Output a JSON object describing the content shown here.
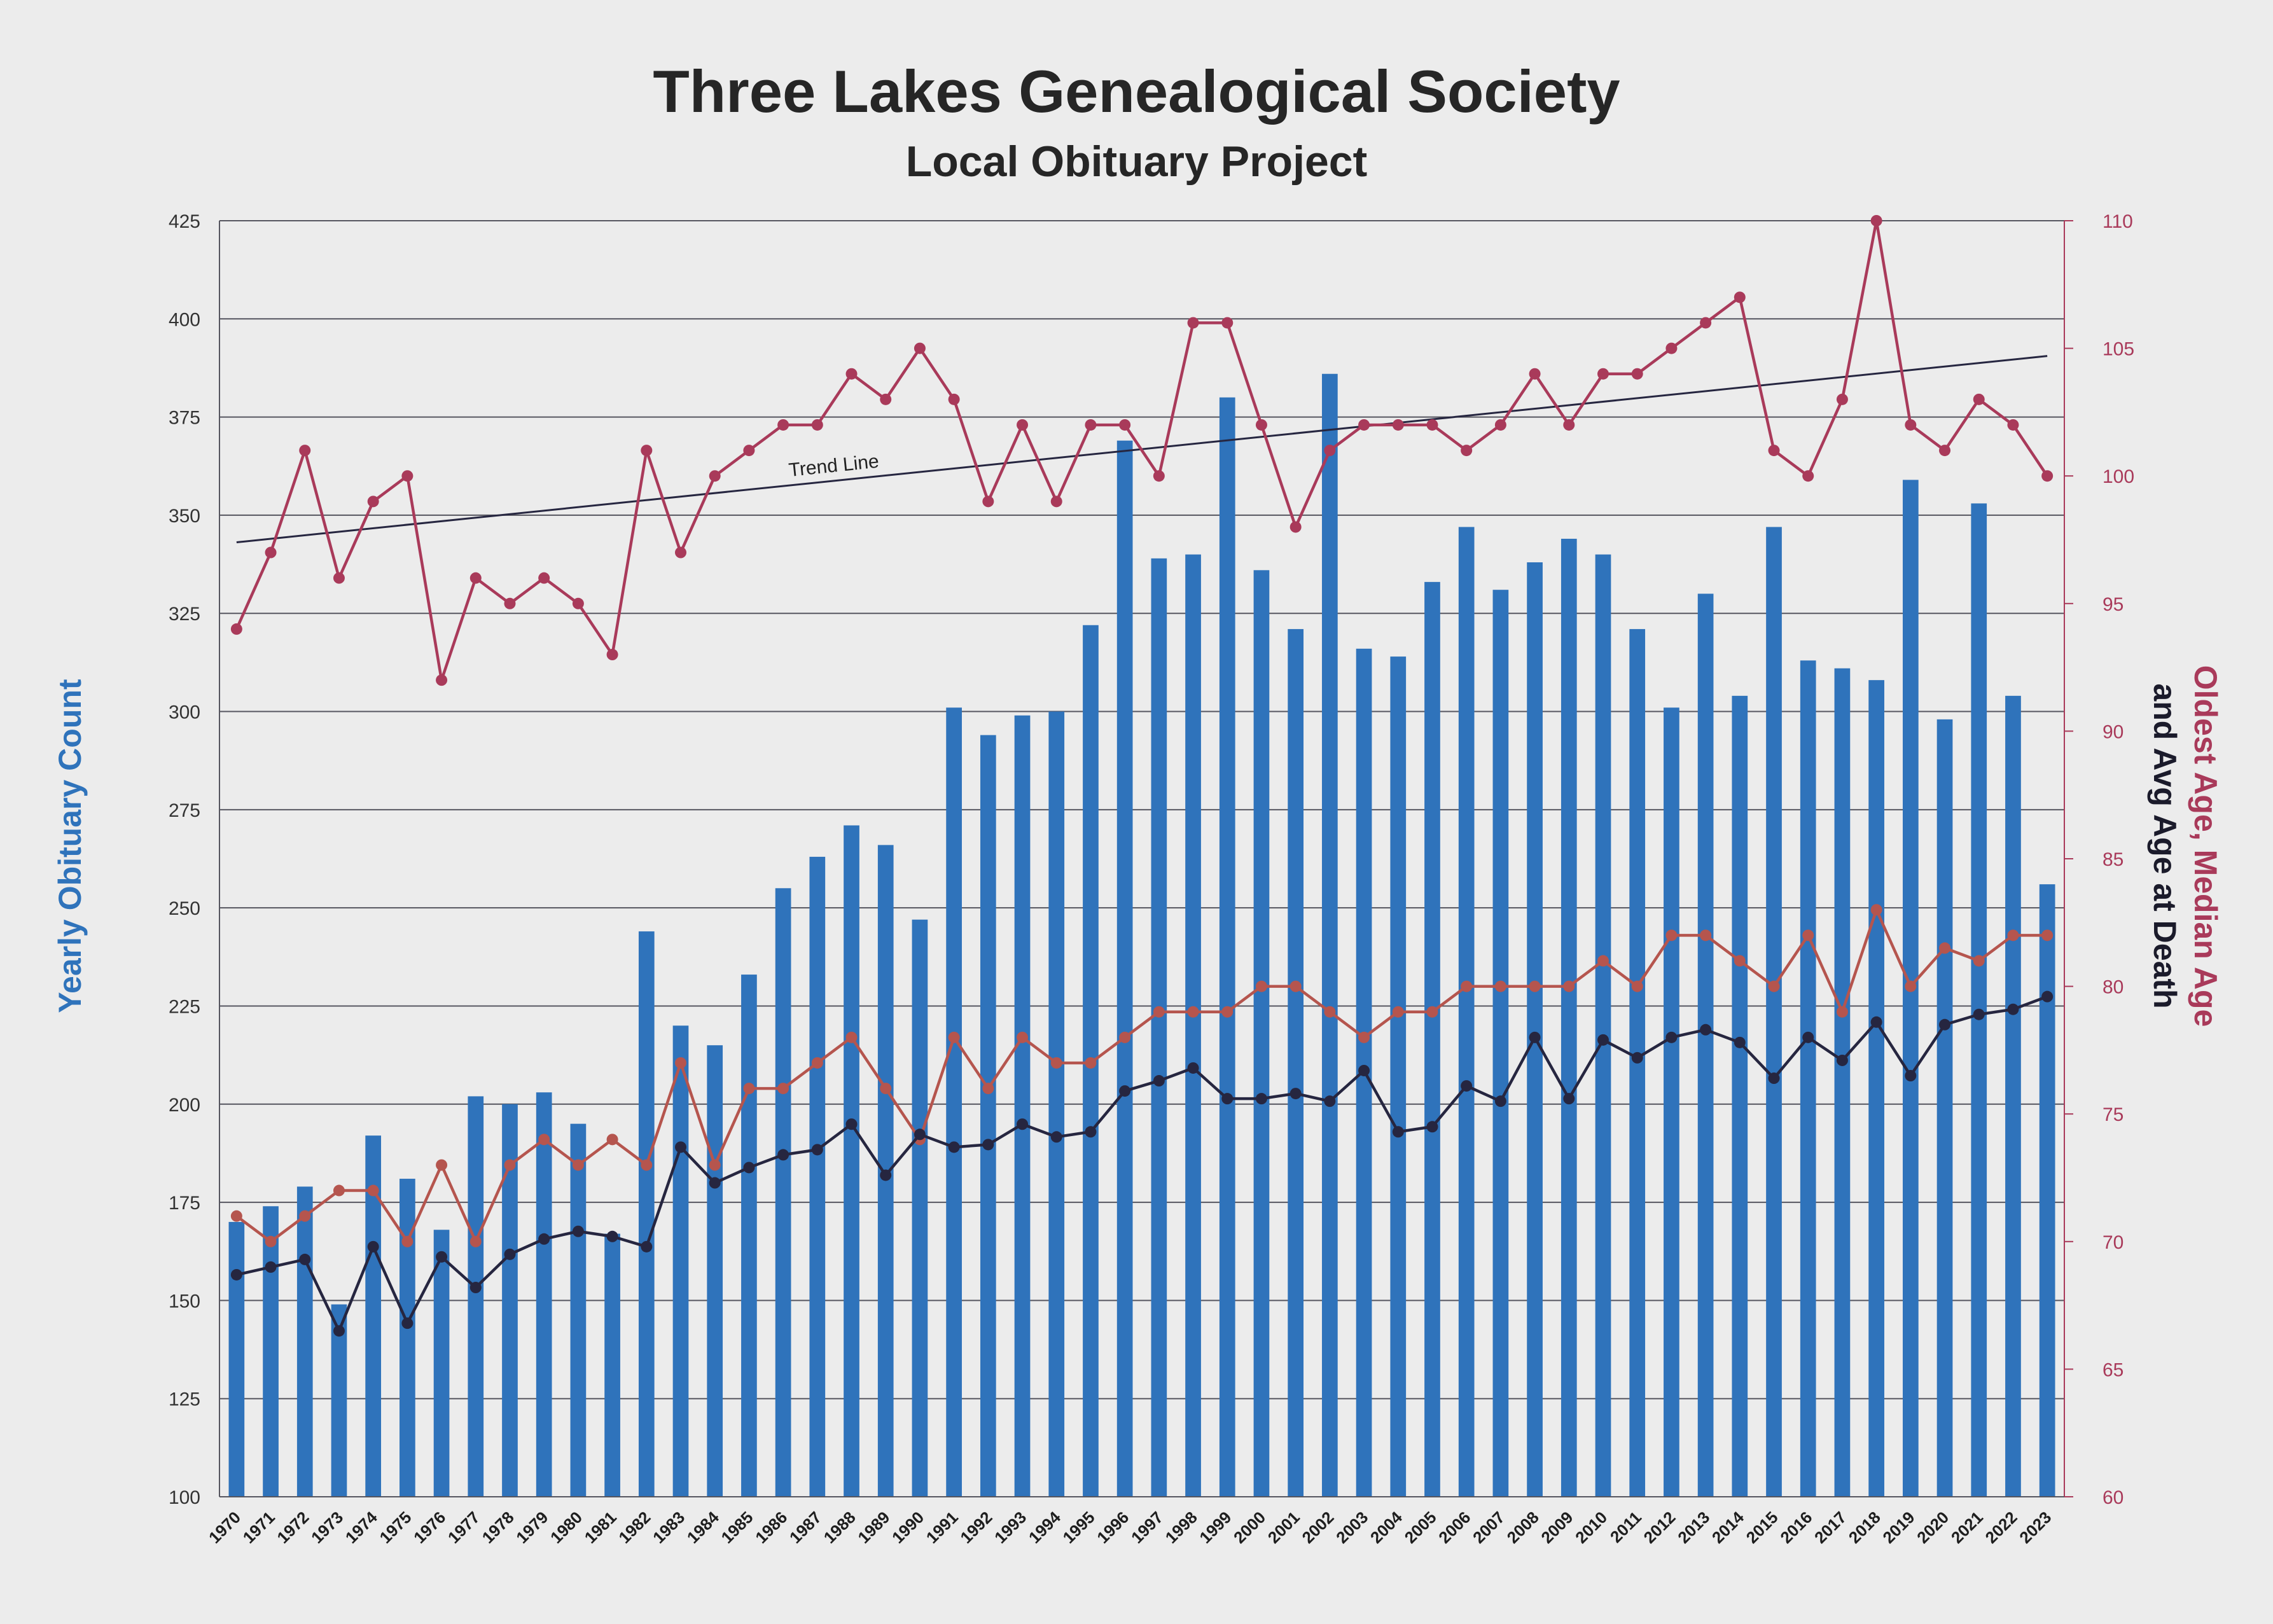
{
  "chart_data": {
    "type": "bar",
    "title": "Three Lakes Genealogical Society",
    "subtitle": "Local Obituary Project",
    "ylabel_left": "Yearly Obituary Count",
    "ylabel_right_parts": [
      "Oldest Age, ",
      "Median Age",
      "and Avg Age at Death"
    ],
    "annotation": "Trend Line",
    "ylim_left": [
      100,
      425
    ],
    "yticks_left": [
      100,
      125,
      150,
      175,
      200,
      225,
      250,
      275,
      300,
      325,
      350,
      375,
      400,
      425
    ],
    "ylim_right": [
      60,
      110
    ],
    "yticks_right": [
      60,
      65,
      70,
      75,
      80,
      85,
      90,
      95,
      100,
      105,
      110
    ],
    "grid": true,
    "categories": [
      "1970",
      "1971",
      "1972",
      "1973",
      "1974",
      "1975",
      "1976",
      "1977",
      "1978",
      "1979",
      "1980",
      "1981",
      "1982",
      "1983",
      "1984",
      "1985",
      "1986",
      "1987",
      "1988",
      "1989",
      "1990",
      "1991",
      "1992",
      "1993",
      "1994",
      "1995",
      "1996",
      "1997",
      "1998",
      "1999",
      "2000",
      "2001",
      "2002",
      "2003",
      "2004",
      "2005",
      "2006",
      "2007",
      "2008",
      "2009",
      "2010",
      "2011",
      "2012",
      "2013",
      "2014",
      "2015",
      "2016",
      "2017",
      "2018",
      "2019",
      "2020",
      "2021",
      "2022",
      "2023"
    ],
    "series": [
      {
        "name": "Yearly Obituary Count",
        "type": "bar",
        "axis": "left",
        "color": "#2f73bb",
        "values": [
          170,
          174,
          179,
          149,
          192,
          181,
          168,
          202,
          200,
          203,
          195,
          167,
          244,
          220,
          215,
          233,
          255,
          263,
          271,
          266,
          247,
          301,
          294,
          299,
          300,
          322,
          369,
          339,
          340,
          380,
          336,
          321,
          386,
          316,
          314,
          333,
          347,
          331,
          338,
          344,
          340,
          321,
          301,
          330,
          304,
          347,
          313,
          311,
          308,
          359,
          298,
          353,
          304,
          256
        ]
      },
      {
        "name": "Oldest Age",
        "type": "line",
        "axis": "right",
        "color": "#a93a5a",
        "values": [
          94,
          97,
          101,
          96,
          99,
          100,
          92,
          96,
          95,
          96,
          95,
          93,
          101,
          97,
          100,
          101,
          102,
          102,
          104,
          103,
          105,
          103,
          99,
          102,
          99,
          102,
          102,
          100,
          106,
          106,
          102,
          98,
          101,
          102,
          102,
          102,
          101,
          102,
          104,
          102,
          104,
          104,
          105,
          106,
          107,
          101,
          100,
          103,
          110,
          102,
          101,
          103,
          102,
          100
        ]
      },
      {
        "name": "Median Age",
        "type": "line",
        "axis": "right",
        "color": "#b5554e",
        "values": [
          71,
          70,
          71,
          72,
          72,
          70,
          73,
          70,
          73,
          74,
          73,
          74,
          73,
          77,
          73,
          76,
          76,
          77,
          78,
          76,
          74,
          78,
          76,
          78,
          77,
          77,
          78,
          79,
          79,
          79,
          80,
          80,
          79,
          78,
          79,
          79,
          80,
          80,
          80,
          80,
          81,
          80,
          82,
          82,
          81,
          80,
          82,
          79,
          83,
          80,
          81.5,
          81,
          82,
          82
        ]
      },
      {
        "name": "Avg Age",
        "type": "line",
        "axis": "right",
        "color": "#262640",
        "values": [
          68.7,
          69,
          69.3,
          66.5,
          69.8,
          66.8,
          69.4,
          68.2,
          69.5,
          70.1,
          70.4,
          70.2,
          69.8,
          73.7,
          72.3,
          72.9,
          73.4,
          73.6,
          74.6,
          72.6,
          74.2,
          73.7,
          73.8,
          74.6,
          74.1,
          74.3,
          75.9,
          76.3,
          76.8,
          75.6,
          75.6,
          75.8,
          75.5,
          76.7,
          74.3,
          74.5,
          76.1,
          75.5,
          78,
          75.6,
          77.9,
          77.2,
          78,
          78.3,
          77.8,
          76.4,
          78,
          77.1,
          78.6,
          76.5,
          78.5,
          78.9,
          79.1,
          79.6
        ]
      }
    ],
    "trend_line": {
      "series": "Oldest Age",
      "start": {
        "x": "1970",
        "y": 97.4
      },
      "end": {
        "x": "2023",
        "y": 104.7
      },
      "color": "#262640"
    }
  }
}
